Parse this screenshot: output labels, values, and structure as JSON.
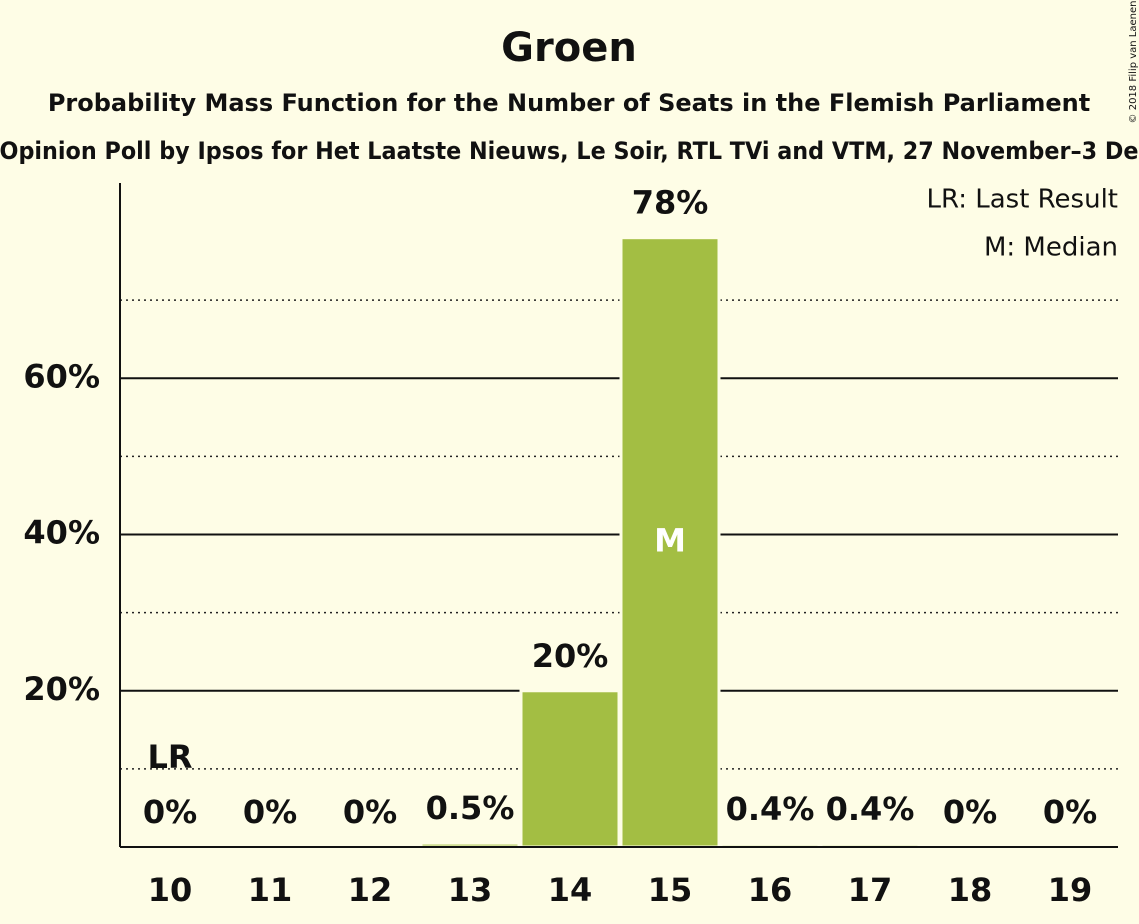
{
  "chart_data": {
    "type": "bar",
    "title": "Groen",
    "subtitle": "Probability Mass Function for the Number of Seats in the Flemish Parliament",
    "subtitle2": "Opinion Poll by Ipsos for Het Laatste Nieuws, Le Soir, RTL TVi and VTM, 27 November–3 De",
    "credit": "© 2018 Filip van Laenen",
    "categories": [
      "10",
      "11",
      "12",
      "13",
      "14",
      "15",
      "16",
      "17",
      "18",
      "19"
    ],
    "values": [
      0,
      0,
      0,
      0.5,
      20,
      78,
      0.4,
      0.4,
      0,
      0
    ],
    "value_labels": [
      "0%",
      "0%",
      "0%",
      "0.5%",
      "20%",
      "78%",
      "0.4%",
      "0.4%",
      "0%",
      "0%"
    ],
    "color": "#a3be43",
    "ylim": [
      0,
      85
    ],
    "yticks": [
      {
        "value": 20,
        "label": "20%"
      },
      {
        "value": 40,
        "label": "40%"
      },
      {
        "value": 60,
        "label": "60%"
      }
    ],
    "minor_yticks": [
      10,
      30,
      50,
      70
    ],
    "grid": true,
    "annotations": [
      {
        "text": "LR",
        "x": "10"
      },
      {
        "text": "M",
        "x": "15"
      }
    ],
    "legend": [
      "LR: Last Result",
      "M: Median"
    ]
  }
}
